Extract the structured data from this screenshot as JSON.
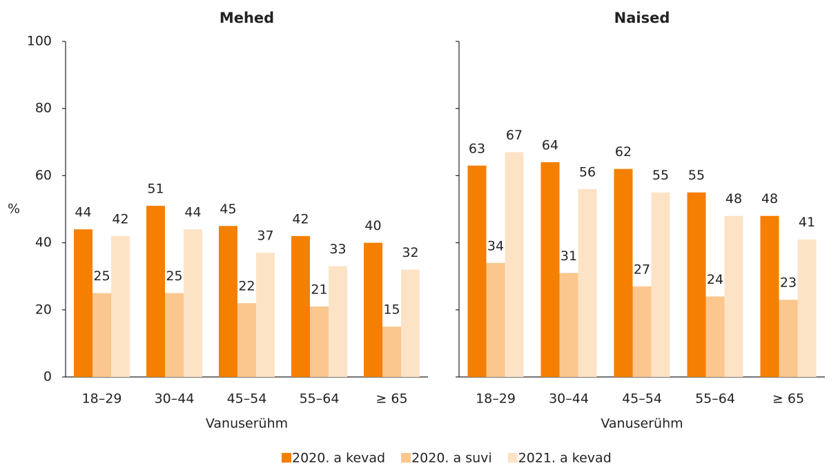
{
  "chart_data": [
    {
      "type": "bar",
      "title": "Mehed",
      "xlabel": "Vanuserühm",
      "ylabel": "%",
      "categories": [
        "18–29",
        "30–44",
        "45–54",
        "55–64",
        "≥ 65"
      ],
      "series": [
        {
          "name": "2020. a kevad",
          "color": "#f57f00",
          "values": [
            44,
            51,
            45,
            42,
            40
          ]
        },
        {
          "name": "2020. a suvi",
          "color": "#fbc78f",
          "values": [
            25,
            25,
            22,
            21,
            15
          ]
        },
        {
          "name": "2021. a kevad",
          "color": "#fde3c6",
          "values": [
            42,
            44,
            37,
            33,
            32
          ]
        }
      ],
      "ylim": [
        0,
        100
      ],
      "yticks": [
        0,
        20,
        40,
        60,
        80,
        100
      ]
    },
    {
      "type": "bar",
      "title": "Naised",
      "xlabel": "Vanuserühm",
      "categories": [
        "18–29",
        "30–44",
        "45–54",
        "55–64",
        "≥ 65"
      ],
      "series": [
        {
          "name": "2020. a kevad",
          "color": "#f57f00",
          "values": [
            63,
            64,
            62,
            55,
            48
          ]
        },
        {
          "name": "2020. a suvi",
          "color": "#fbc78f",
          "values": [
            34,
            31,
            27,
            24,
            23
          ]
        },
        {
          "name": "2021. a kevad",
          "color": "#fde3c6",
          "values": [
            67,
            56,
            55,
            48,
            41
          ]
        }
      ],
      "ylim": [
        0,
        100
      ],
      "yticks": [
        0,
        20,
        40,
        60,
        80,
        100
      ]
    }
  ]
}
